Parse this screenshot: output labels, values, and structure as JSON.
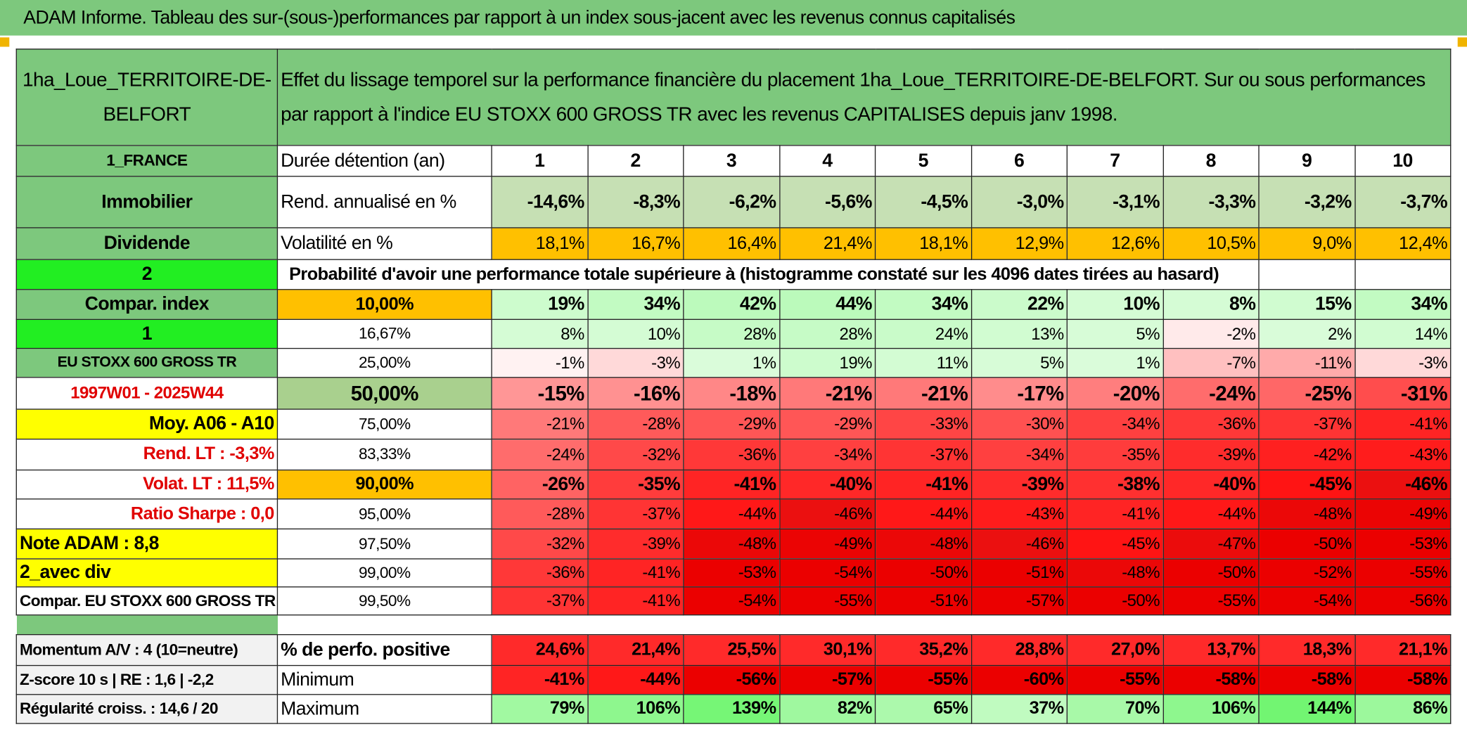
{
  "header": {
    "title": "ADAM Informe. Tableau des sur-(sous-)performances par rapport à un index sous-jacent avec les revenus connus capitalisés"
  },
  "table": {
    "fund": "1ha_Loue_TERRITOIRE-DE-BELFORT",
    "description": "Effet du lissage temporel sur la performance financière du placement 1ha_Loue_TERRITOIRE-DE-BELFORT. Sur ou sous performances par rapport à l'indice EU STOXX 600 GROSS TR avec les revenus CAPITALISES depuis janv 1998.",
    "rows": [
      [
        "1_FRANCE",
        "Durée détention (an)",
        "1",
        "2",
        "3",
        "4",
        "5",
        "6",
        "7",
        "8",
        "9",
        "10"
      ],
      [
        "Immobilier",
        "Rend. annualisé en %",
        "-14,6%",
        "-8,3%",
        "-6,2%",
        "-5,6%",
        "-4,5%",
        "-3,0%",
        "-3,1%",
        "-3,3%",
        "-3,2%",
        "-3,7%"
      ],
      [
        "Dividende",
        "Volatilité en %",
        "18,1%",
        "16,7%",
        "16,4%",
        "21,4%",
        "18,1%",
        "12,9%",
        "12,6%",
        "10,5%",
        "9,0%",
        "12,4%"
      ],
      [
        "2",
        "Probabilité d'avoir une performance totale supérieure à (histogramme constaté sur les 4096 dates tirées au hasard)"
      ],
      [
        "Compar. index",
        "10,00%",
        "19%",
        "34%",
        "42%",
        "44%",
        "34%",
        "22%",
        "10%",
        "8%",
        "15%",
        "34%"
      ],
      [
        "1",
        "16,67%",
        "8%",
        "10%",
        "28%",
        "28%",
        "24%",
        "13%",
        "5%",
        "-2%",
        "2%",
        "14%"
      ],
      [
        "EU STOXX 600 GROSS TR",
        "25,00%",
        "-1%",
        "-3%",
        "1%",
        "19%",
        "11%",
        "5%",
        "1%",
        "-7%",
        "-11%",
        "-3%"
      ],
      [
        "1997W01 - 2025W44",
        "50,00%",
        "-15%",
        "-16%",
        "-18%",
        "-21%",
        "-21%",
        "-17%",
        "-20%",
        "-24%",
        "-25%",
        "-31%"
      ],
      [
        "Moy. A06 - A10",
        "75,00%",
        "-21%",
        "-28%",
        "-29%",
        "-29%",
        "-33%",
        "-30%",
        "-34%",
        "-36%",
        "-37%",
        "-41%"
      ],
      [
        "Rend. LT :   -3,3%",
        "83,33%",
        "-24%",
        "-32%",
        "-36%",
        "-34%",
        "-37%",
        "-34%",
        "-35%",
        "-39%",
        "-42%",
        "-43%"
      ],
      [
        "Volat. LT :   11,5%",
        "90,00%",
        "-26%",
        "-35%",
        "-41%",
        "-40%",
        "-41%",
        "-39%",
        "-38%",
        "-40%",
        "-45%",
        "-46%"
      ],
      [
        "Ratio Sharpe :    0,0",
        "95,00%",
        "-28%",
        "-37%",
        "-44%",
        "-46%",
        "-44%",
        "-43%",
        "-41%",
        "-44%",
        "-48%",
        "-49%"
      ],
      [
        "Note ADAM : 8,8",
        "97,50%",
        "-32%",
        "-39%",
        "-48%",
        "-49%",
        "-48%",
        "-46%",
        "-45%",
        "-47%",
        "-50%",
        "-53%"
      ],
      [
        "2_avec div",
        "99,00%",
        "-36%",
        "-41%",
        "-53%",
        "-54%",
        "-50%",
        "-51%",
        "-48%",
        "-50%",
        "-52%",
        "-55%"
      ],
      [
        "Compar. EU STOXX 600 GROSS TR",
        "99,50%",
        "-37%",
        "-41%",
        "-54%",
        "-55%",
        "-51%",
        "-57%",
        "-50%",
        "-55%",
        "-54%",
        "-56%"
      ]
    ],
    "footer_rows": [
      [
        "Momentum A/V : 4 (10=neutre)",
        "% de perfo. positive",
        "24,6%",
        "21,4%",
        "25,5%",
        "30,1%",
        "35,2%",
        "28,8%",
        "27,0%",
        "13,7%",
        "18,3%",
        "21,1%"
      ],
      [
        "Z-score 10 s | RE : 1,6 | -2,2",
        "Minimum",
        "-41%",
        "-44%",
        "-56%",
        "-57%",
        "-55%",
        "-60%",
        "-55%",
        "-58%",
        "-58%",
        "-58%"
      ],
      [
        "Régularité croiss. : 14,6 / 20",
        "Maximum",
        "79%",
        "106%",
        "139%",
        "82%",
        "65%",
        "37%",
        "70%",
        "106%",
        "144%",
        "86%"
      ]
    ]
  }
}
